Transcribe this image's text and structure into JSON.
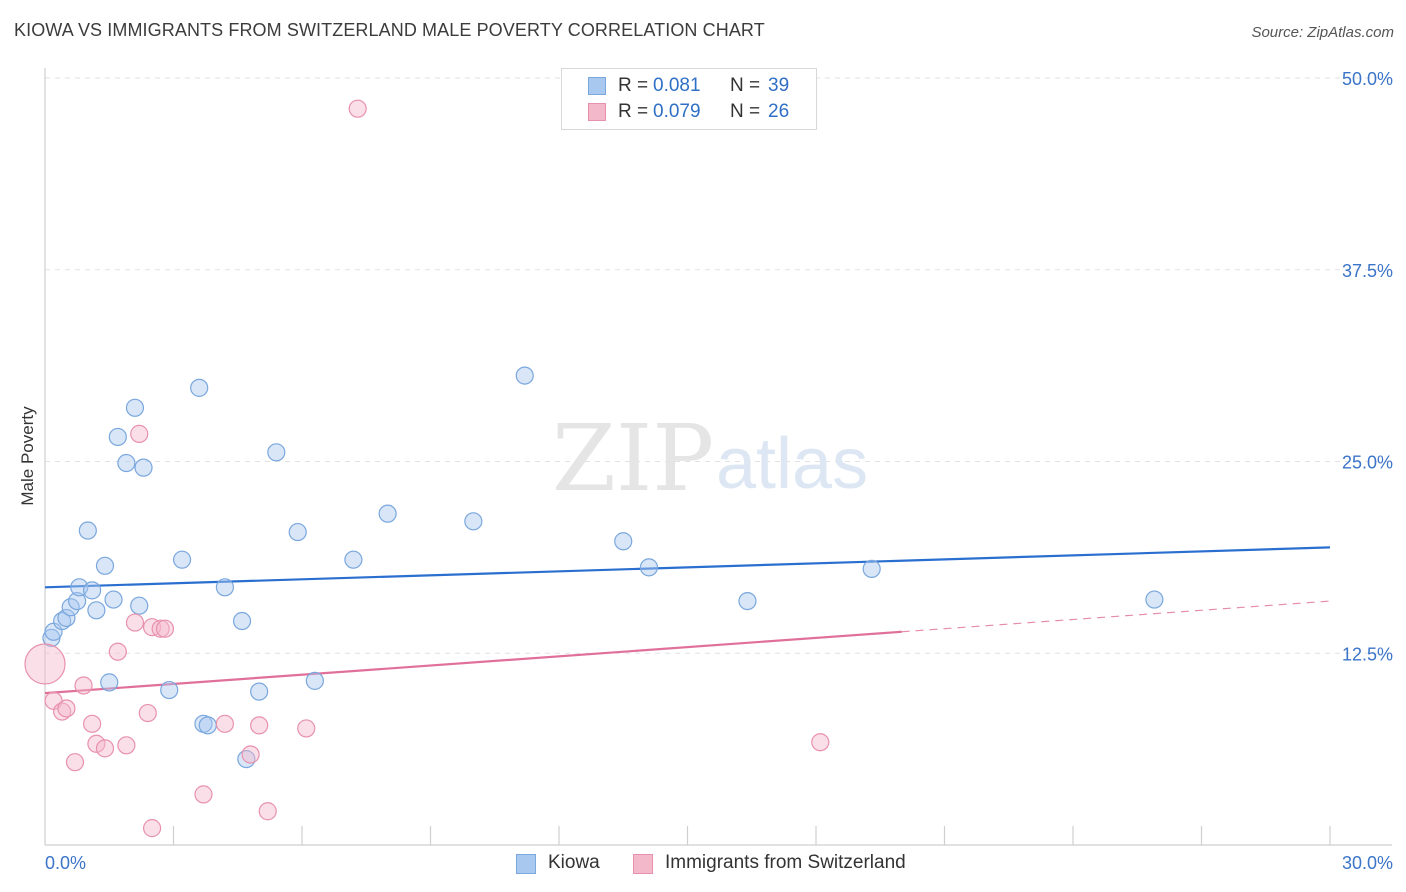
{
  "header": {
    "title": "KIOWA VS IMMIGRANTS FROM SWITZERLAND MALE POVERTY CORRELATION CHART",
    "source": "Source: ZipAtlas.com"
  },
  "watermark": {
    "zip": "ZIP",
    "atlas": "atlas"
  },
  "legend": {
    "rows": [
      {
        "r_label": "R =",
        "r_value": "0.081",
        "n_label": "N =",
        "n_value": "39",
        "color": "#a8c8f0"
      },
      {
        "r_label": "R =",
        "r_value": "0.079",
        "n_label": "N =",
        "n_value": "26",
        "color": "#f4b8cb"
      }
    ]
  },
  "chart_data": {
    "type": "scatter",
    "title": "KIOWA VS IMMIGRANTS FROM SWITZERLAND MALE POVERTY CORRELATION CHART",
    "xlabel": "",
    "ylabel": "Male Poverty",
    "xlim": [
      0,
      30
    ],
    "ylim": [
      0,
      50
    ],
    "x_tick_labels": [
      "0.0%",
      "30.0%"
    ],
    "y_ticks": [
      12.5,
      25.0,
      37.5,
      50.0
    ],
    "y_tick_labels": [
      "12.5%",
      "25.0%",
      "37.5%",
      "50.0%"
    ],
    "grid": true,
    "legend_position": "top-center",
    "series": [
      {
        "name": "Kiowa",
        "color": "#a8c8f0",
        "edge": "#7aa7dd",
        "line_color": "#2a6fcf",
        "trend": {
          "x": [
            0,
            30
          ],
          "y": [
            16.8,
            19.4
          ]
        },
        "points": [
          [
            0.15,
            13.5
          ],
          [
            0.2,
            13.9
          ],
          [
            0.4,
            14.6
          ],
          [
            0.5,
            14.8
          ],
          [
            0.6,
            15.5
          ],
          [
            0.75,
            15.9
          ],
          [
            0.8,
            16.8
          ],
          [
            1.0,
            20.5
          ],
          [
            1.1,
            16.6
          ],
          [
            1.2,
            15.3
          ],
          [
            1.4,
            18.2
          ],
          [
            1.5,
            10.6
          ],
          [
            1.6,
            16.0
          ],
          [
            1.7,
            26.6
          ],
          [
            1.9,
            24.9
          ],
          [
            2.1,
            28.5
          ],
          [
            2.2,
            15.6
          ],
          [
            2.3,
            24.6
          ],
          [
            2.9,
            10.1
          ],
          [
            3.2,
            18.6
          ],
          [
            3.6,
            29.8
          ],
          [
            3.7,
            7.9
          ],
          [
            3.8,
            7.8
          ],
          [
            4.2,
            16.8
          ],
          [
            4.6,
            14.6
          ],
          [
            4.7,
            5.6
          ],
          [
            5.0,
            10.0
          ],
          [
            5.4,
            25.6
          ],
          [
            5.9,
            20.4
          ],
          [
            6.3,
            10.7
          ],
          [
            7.2,
            18.6
          ],
          [
            8.0,
            21.6
          ],
          [
            10.0,
            21.1
          ],
          [
            11.2,
            30.6
          ],
          [
            13.5,
            19.8
          ],
          [
            14.1,
            18.1
          ],
          [
            16.4,
            15.9
          ],
          [
            19.3,
            18.0
          ],
          [
            25.9,
            16.0
          ]
        ]
      },
      {
        "name": "Immigrants from Switzerland",
        "color": "#f4b8cb",
        "edge": "#e891ad",
        "line_color": "#e0709a",
        "trend": {
          "x": [
            0,
            20
          ],
          "y": [
            9.9,
            13.9
          ]
        },
        "trend_dashed": {
          "x": [
            20,
            30
          ],
          "y": [
            13.9,
            15.9
          ]
        },
        "points": [
          [
            0.0,
            11.8
          ],
          [
            0.2,
            9.4
          ],
          [
            0.4,
            8.7
          ],
          [
            0.5,
            8.9
          ],
          [
            0.7,
            5.4
          ],
          [
            0.9,
            10.4
          ],
          [
            1.1,
            7.9
          ],
          [
            1.2,
            6.6
          ],
          [
            1.4,
            6.3
          ],
          [
            1.7,
            12.6
          ],
          [
            1.9,
            6.5
          ],
          [
            2.1,
            14.5
          ],
          [
            2.2,
            26.8
          ],
          [
            2.4,
            8.6
          ],
          [
            2.5,
            14.2
          ],
          [
            2.5,
            1.1
          ],
          [
            2.7,
            14.1
          ],
          [
            2.8,
            14.1
          ],
          [
            3.7,
            3.3
          ],
          [
            4.2,
            7.9
          ],
          [
            4.8,
            5.9
          ],
          [
            5.0,
            7.8
          ],
          [
            5.2,
            2.2
          ],
          [
            6.1,
            7.6
          ],
          [
            7.3,
            48.0
          ],
          [
            18.1,
            6.7
          ]
        ]
      }
    ]
  }
}
